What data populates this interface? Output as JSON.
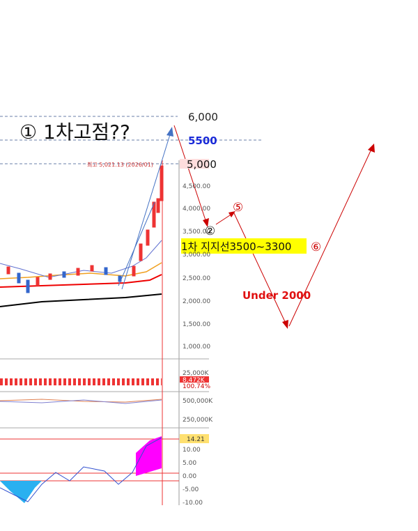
{
  "annotations": {
    "top_target": "① 1차고점??",
    "level_6000": "6,000",
    "level_5500": "5500",
    "level_5000": "5,000",
    "high_note": "최고 5,021.13 (2026/01)",
    "step2": "②",
    "step5": "⑤",
    "support": "1차 지지선3500~3300",
    "step6": "⑥",
    "under": "Under 2000"
  },
  "price_axis": [
    "4,500.00",
    "4,000.00",
    "3,500.00",
    "3,000.00",
    "2,500.00",
    "2,000.00",
    "1,500.00",
    "1,000.00"
  ],
  "volume_axis": {
    "top": "25,000K",
    "current": "8,472K",
    "ratio": "100.74%"
  },
  "amount_axis": [
    "500,000K",
    "250,000K"
  ],
  "oscillator_axis": {
    "current": "14.21",
    "ticks": [
      "10.00",
      "5.00",
      "0.00",
      "-5.00",
      "-10.00"
    ]
  }
}
